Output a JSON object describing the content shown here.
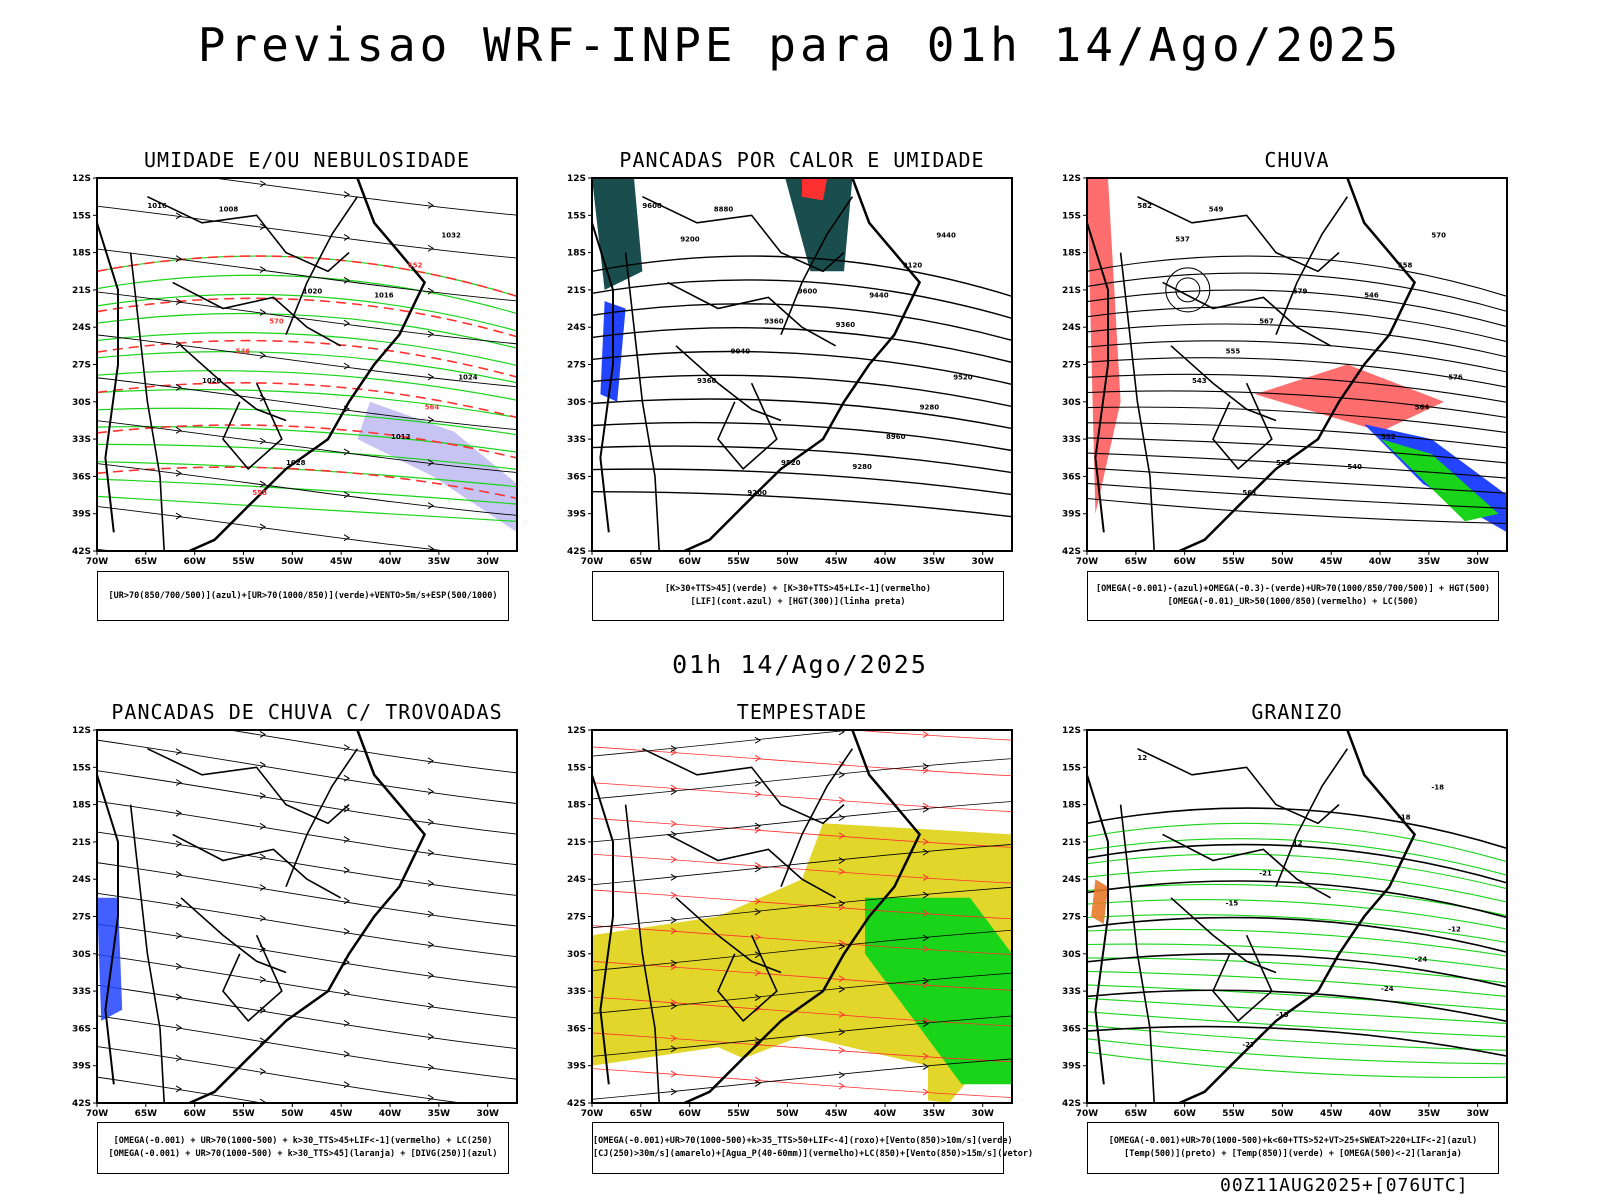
{
  "main_title": "Previsao WRF-INPE  para 01h 14/Ago/2025",
  "mid_title": "01h 14/Ago/2025",
  "footer": "00Z11AUG2025+[076UTC]",
  "lat_labels": [
    "12S",
    "15S",
    "18S",
    "21S",
    "24S",
    "27S",
    "30S",
    "33S",
    "36S",
    "39S",
    "42S"
  ],
  "lon_labels": [
    "70W",
    "65W",
    "60W",
    "55W",
    "50W",
    "45W",
    "40W",
    "35W",
    "30W"
  ],
  "panels": [
    {
      "title": "UMIDADE E/OU NEBULOSIDADE",
      "legend": [
        "[UR>70(850/700/500)](azul)+[UR>70(1000/850)](verde)+VENTO>5m/s+ESP(500/1000)"
      ],
      "contour_labels": [
        "1016",
        "1020",
        "1024",
        "1028",
        "1032",
        "570",
        "564",
        "558",
        "552",
        "546",
        "1012",
        "1008",
        "1016",
        "1020"
      ]
    },
    {
      "title": "PANCADAS POR CALOR E UMIDADE",
      "legend": [
        "[K>30+TTS>45](verde) + [K>30+TTS>45+LI<-1](vermelho)",
        "[LIF](cont.azul) + [HGT(300)](linha preta)"
      ],
      "contour_labels": [
        "9600",
        "9600",
        "9520",
        "9520",
        "9440",
        "9360",
        "9280",
        "9200",
        "9120",
        "9040",
        "8960",
        "8880",
        "9440",
        "9360",
        "9280",
        "9200",
        "9360"
      ]
    },
    {
      "title": "CHUVA",
      "legend": [
        "[OMEGA(-0.001)-(azul)+OMEGA(-0.3)-(verde)+UR>70(1000/850/700/500)] + HGT(500)",
        "[OMEGA(-0.01)_UR>50(1000/850)(vermelho) + LC(500)"
      ],
      "contour_labels": [
        "582",
        "579",
        "576",
        "573",
        "570",
        "567",
        "564",
        "561",
        "558",
        "555",
        "552",
        "549",
        "546",
        "543",
        "540",
        "537"
      ]
    },
    {
      "title": "PANCADAS DE CHUVA C/ TROVOADAS",
      "legend": [
        "[OMEGA(-0.001) + UR>70(1000-500) + k>30_TTS>45+LIF<-1](vermelho) + LC(250)",
        "[OMEGA(-0.001) + UR>70(1000-500) + k>30_TTS>45](laranja) + [DIVG(250)](azul)"
      ],
      "contour_labels": []
    },
    {
      "title": "TEMPESTADE",
      "legend": [
        "[OMEGA(-0.001)+UR>70(1000-500)+k>35_TTS>50+LIF<-4](roxo)+[Vento(850)>10m/s](verde)",
        "[CJ(250)>30m/s](amarelo)+[Agua_P(40-60mm)](vermelho)+LC(850)+[Vento(850)>15m/s](vetor)"
      ],
      "contour_labels": []
    },
    {
      "title": "GRANIZO",
      "legend": [
        "[OMEGA(-0.001)+UR>70(1000-500)+k<60+TTS>52+VT>25+SWEAT>220+LIF<-2](azul)",
        "[Temp(500)](preto) + [Temp(850)](verde) + [OMEGA(500)<-2](laranja)"
      ],
      "contour_labels": [
        "12",
        "12",
        "-12",
        "-15",
        "-18",
        "-21",
        "-24",
        "-27",
        "-18",
        "-15",
        "-24"
      ]
    }
  ],
  "colors": {
    "green": "#19d419",
    "red": "#ff3030",
    "blue": "#2244ff",
    "yellow": "#e3d62a",
    "lavender": "#b9b4f0",
    "teal": "#1a4d4d",
    "black": "#000000"
  }
}
